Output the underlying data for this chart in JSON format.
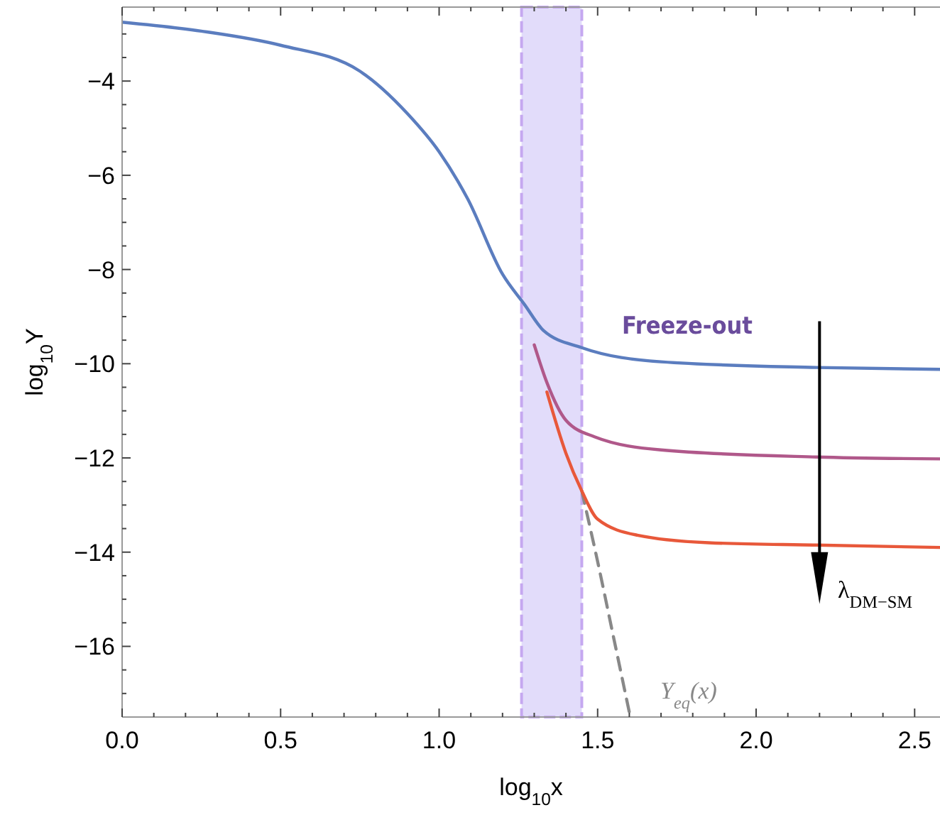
{
  "chart_data": {
    "type": "line",
    "xlabel": "log$_{10}$x",
    "ylabel": "log$_{10}$Y",
    "xlim": [
      0,
      2.58
    ],
    "ylim": [
      -17.5,
      -2.43
    ],
    "xticks": [
      {
        "value": 0,
        "label": "0.0"
      },
      {
        "value": 0.1,
        "label": null
      },
      {
        "value": 0.2,
        "label": null
      },
      {
        "value": 0.3,
        "label": null
      },
      {
        "value": 0.4,
        "label": null
      },
      {
        "value": 0.5,
        "label": "0.5"
      },
      {
        "value": 0.6,
        "label": null
      },
      {
        "value": 0.7,
        "label": null
      },
      {
        "value": 0.8,
        "label": null
      },
      {
        "value": 0.9,
        "label": null
      },
      {
        "value": 1,
        "label": "1.0"
      },
      {
        "value": 1.1,
        "label": null
      },
      {
        "value": 1.2,
        "label": null
      },
      {
        "value": 1.3,
        "label": null
      },
      {
        "value": 1.4,
        "label": null
      },
      {
        "value": 1.5,
        "label": "1.5"
      },
      {
        "value": 1.6,
        "label": null
      },
      {
        "value": 1.7,
        "label": null
      },
      {
        "value": 1.8,
        "label": null
      },
      {
        "value": 1.9,
        "label": null
      },
      {
        "value": 2,
        "label": "2.0"
      },
      {
        "value": 2.1,
        "label": null
      },
      {
        "value": 2.2,
        "label": null
      },
      {
        "value": 2.3,
        "label": null
      },
      {
        "value": 2.4,
        "label": null
      },
      {
        "value": 2.5,
        "label": "2.5"
      }
    ],
    "yticks": [
      {
        "value": -3,
        "label": null
      },
      {
        "value": -3.5,
        "label": null
      },
      {
        "value": -4,
        "label": "−4"
      },
      {
        "value": -4.5,
        "label": null
      },
      {
        "value": -5,
        "label": null
      },
      {
        "value": -5.5,
        "label": null
      },
      {
        "value": -6,
        "label": "−6"
      },
      {
        "value": -6.5,
        "label": null
      },
      {
        "value": -7,
        "label": null
      },
      {
        "value": -7.5,
        "label": null
      },
      {
        "value": -8,
        "label": "−8"
      },
      {
        "value": -8.5,
        "label": null
      },
      {
        "value": -9,
        "label": null
      },
      {
        "value": -9.5,
        "label": null
      },
      {
        "value": -10,
        "label": "−10"
      },
      {
        "value": -10.5,
        "label": null
      },
      {
        "value": -11,
        "label": null
      },
      {
        "value": -11.5,
        "label": null
      },
      {
        "value": -12,
        "label": "−12"
      },
      {
        "value": -12.5,
        "label": null
      },
      {
        "value": -13,
        "label": null
      },
      {
        "value": -13.5,
        "label": null
      },
      {
        "value": -14,
        "label": "−14"
      },
      {
        "value": -14.5,
        "label": null
      },
      {
        "value": -15,
        "label": null
      },
      {
        "value": -15.5,
        "label": null
      },
      {
        "value": -16,
        "label": "−16"
      },
      {
        "value": -16.5,
        "label": null
      },
      {
        "value": -17,
        "label": null
      }
    ],
    "grid": false,
    "bands": [
      {
        "axis": "x",
        "from": 1.26,
        "to": 1.45,
        "color": "#e2dcfa"
      }
    ],
    "series": [
      {
        "color": "#888888",
        "line_style": "dashed",
        "x": [
          1.45,
          1.5,
          1.55,
          1.6
        ],
        "values": [
          -12.7,
          -14.2,
          -15.8,
          -17.4
        ]
      },
      {
        "color": "#e8583a",
        "x": [
          1.34,
          1.4,
          1.45,
          1.5,
          1.625,
          1.85,
          2.19,
          2.58
        ],
        "values": [
          -10.6,
          -11.9,
          -12.7,
          -13.3,
          -13.64,
          -13.8,
          -13.85,
          -13.9
        ]
      },
      {
        "color": "#b0588a",
        "x": [
          1.3,
          1.34,
          1.4,
          1.49,
          1.7,
          2.19,
          2.58
        ],
        "values": [
          -9.6,
          -10.4,
          -11.2,
          -11.55,
          -11.83,
          -11.98,
          -12.02
        ]
      },
      {
        "color": "#5b7dbf",
        "x": [
          0,
          0.25,
          0.5,
          0.75,
          0.9,
          1.0,
          1.09,
          1.2,
          1.27,
          1.33,
          1.45,
          1.7,
          2.19,
          2.58
        ],
        "values": [
          -2.75,
          -2.94,
          -3.24,
          -3.79,
          -4.69,
          -5.5,
          -6.5,
          -8.1,
          -8.75,
          -9.3,
          -9.66,
          -9.96,
          -10.08,
          -10.12
        ]
      }
    ],
    "annotations": [
      "Freeze-out",
      "λ$_{DM−SM}$",
      "Y$_{eq}$(x)"
    ]
  }
}
